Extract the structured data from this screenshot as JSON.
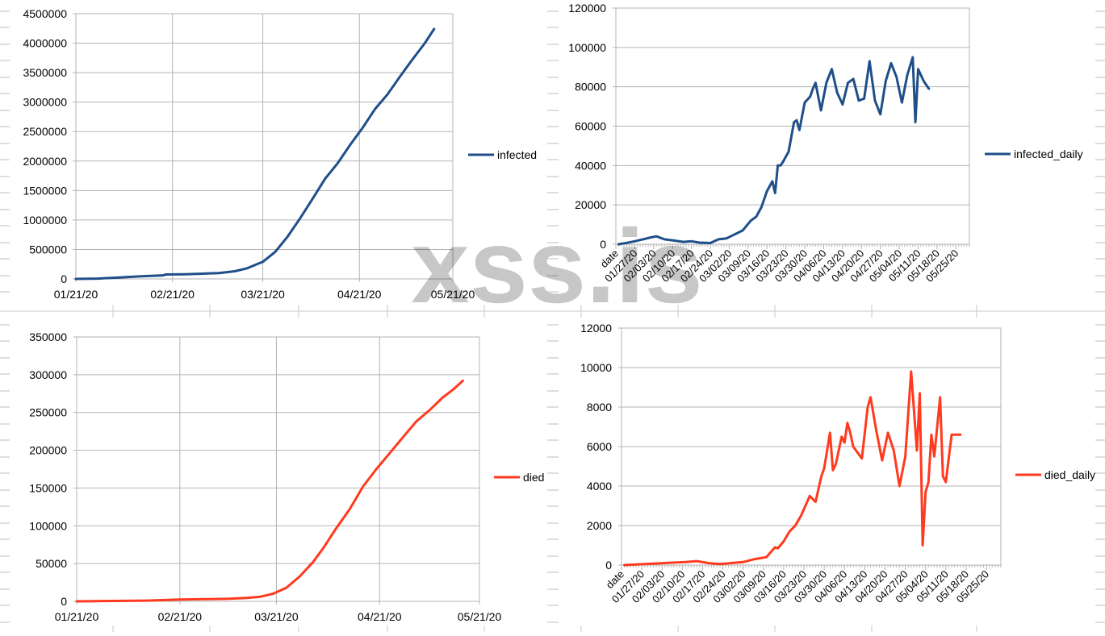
{
  "watermark": "xss.is",
  "chart_data": [
    {
      "type": "line",
      "title": "",
      "series": [
        {
          "name": "infected",
          "color": "#1f4e89",
          "x": [
            "01/21/20",
            "01/28/20",
            "02/04/20",
            "02/11/20",
            "02/18/20",
            "02/19/20",
            "02/25/20",
            "03/01/20",
            "03/07/20",
            "03/12/20",
            "03/16/20",
            "03/21/20",
            "03/25/20",
            "03/29/20",
            "04/02/20",
            "04/06/20",
            "04/10/20",
            "04/14/20",
            "04/18/20",
            "04/22/20",
            "04/26/20",
            "04/30/20",
            "05/04/20",
            "05/08/20",
            "05/12/20",
            "05/15/20"
          ],
          "values": [
            0,
            6000,
            25000,
            45000,
            60000,
            75000,
            80000,
            87000,
            100000,
            130000,
            180000,
            290000,
            460000,
            720000,
            1030000,
            1360000,
            1700000,
            1960000,
            2270000,
            2560000,
            2880000,
            3130000,
            3430000,
            3720000,
            4000000,
            4240000
          ]
        }
      ],
      "x_ticks": [
        "01/21/20",
        "02/21/20",
        "03/21/20",
        "04/21/20",
        "05/21/20"
      ],
      "xlim": [
        "01/21/20",
        "05/21/20"
      ],
      "ylim": [
        0,
        4500000
      ],
      "y_ticks": [
        0,
        500000,
        1000000,
        1500000,
        2000000,
        2500000,
        3000000,
        3500000,
        4000000,
        4500000
      ],
      "legend": "right",
      "grid": true
    },
    {
      "type": "line",
      "title": "",
      "series": [
        {
          "name": "infected_daily",
          "color": "#1f4e89",
          "x": [
            "01/21/20",
            "01/24/20",
            "01/27/20",
            "01/30/20",
            "02/02/20",
            "02/04/20",
            "02/07/20",
            "02/10/20",
            "02/14/20",
            "02/17/20",
            "02/20/20",
            "02/24/20",
            "02/27/20",
            "03/01/20",
            "03/04/20",
            "03/07/20",
            "03/10/20",
            "03/12/20",
            "03/14/20",
            "03/16/20",
            "03/18/20",
            "03/19/20",
            "03/20/20",
            "03/21/20",
            "03/22/20",
            "03/24/20",
            "03/26/20",
            "03/27/20",
            "03/28/20",
            "03/30/20",
            "04/01/20",
            "04/02/20",
            "04/03/20",
            "04/05/20",
            "04/07/20",
            "04/09/20",
            "04/11/20",
            "04/13/20",
            "04/15/20",
            "04/17/20",
            "04/19/20",
            "04/21/20",
            "04/23/20",
            "04/25/20",
            "04/27/20",
            "04/29/20",
            "05/01/20",
            "05/03/20",
            "05/05/20",
            "05/07/20",
            "05/09/20",
            "05/10/20",
            "05/11/20",
            "05/13/20",
            "05/15/20"
          ],
          "values": [
            0,
            700,
            1500,
            2500,
            3500,
            4000,
            2500,
            2000,
            1200,
            1500,
            800,
            600,
            2500,
            3000,
            5000,
            7000,
            12000,
            14000,
            19000,
            27000,
            32000,
            26000,
            40000,
            40000,
            42000,
            47000,
            62000,
            63000,
            58000,
            72000,
            75000,
            79000,
            82000,
            68000,
            82000,
            89000,
            77000,
            71000,
            82000,
            84000,
            73000,
            74000,
            93000,
            73000,
            66000,
            83000,
            92000,
            85000,
            72000,
            86000,
            95000,
            62000,
            89000,
            83000,
            79000
          ]
        }
      ],
      "categories": [
        "date",
        "01/27/20",
        "02/03/20",
        "02/10/20",
        "02/17/20",
        "02/24/20",
        "03/02/20",
        "03/09/20",
        "03/16/20",
        "03/23/20",
        "03/30/20",
        "04/06/20",
        "04/13/20",
        "04/20/20",
        "04/27/20",
        "05/04/20",
        "05/11/20",
        "05/18/20",
        "05/25/20"
      ],
      "ylim": [
        0,
        120000
      ],
      "y_ticks": [
        0,
        20000,
        40000,
        60000,
        80000,
        100000,
        120000
      ],
      "legend": "right",
      "grid": true
    },
    {
      "type": "line",
      "title": "",
      "series": [
        {
          "name": "died",
          "color": "#ff3a1f",
          "x": [
            "01/21/20",
            "02/01/20",
            "02/11/20",
            "02/21/20",
            "03/01/20",
            "03/07/20",
            "03/12/20",
            "03/16/20",
            "03/20/20",
            "03/24/20",
            "03/28/20",
            "04/01/20",
            "04/04/20",
            "04/08/20",
            "04/12/20",
            "04/16/20",
            "04/20/20",
            "04/24/20",
            "04/28/20",
            "05/02/20",
            "05/06/20",
            "05/10/20",
            "05/13/20",
            "05/16/20"
          ],
          "values": [
            0,
            500,
            1000,
            2400,
            3000,
            3500,
            4500,
            6000,
            10000,
            18000,
            33000,
            52000,
            70000,
            97000,
            122000,
            152000,
            175000,
            196000,
            217000,
            238000,
            253000,
            270000,
            280000,
            292000
          ]
        }
      ],
      "x_ticks": [
        "01/21/20",
        "02/21/20",
        "03/21/20",
        "04/21/20",
        "05/21/20"
      ],
      "xlim": [
        "01/21/20",
        "05/21/20"
      ],
      "ylim": [
        0,
        350000
      ],
      "y_ticks": [
        0,
        50000,
        100000,
        150000,
        200000,
        250000,
        300000,
        350000
      ],
      "legend": "right",
      "grid": true
    },
    {
      "type": "line",
      "title": "",
      "series": [
        {
          "name": "died_daily",
          "color": "#ff3a1f",
          "x": [
            "01/21/20",
            "01/28/20",
            "02/04/20",
            "02/11/20",
            "02/15/20",
            "02/19/20",
            "02/23/20",
            "02/27/20",
            "03/02/20",
            "03/06/20",
            "03/10/20",
            "03/13/20",
            "03/14/20",
            "03/16/20",
            "03/18/20",
            "03/20/20",
            "03/22/20",
            "03/25/20",
            "03/27/20",
            "03/29/20",
            "03/30/20",
            "04/01/20",
            "04/02/20",
            "04/03/20",
            "04/05/20",
            "04/06/20",
            "04/07/20",
            "04/08/20",
            "04/09/20",
            "04/12/20",
            "04/14/20",
            "04/15/20",
            "04/17/20",
            "04/19/20",
            "04/21/20",
            "04/23/20",
            "04/25/20",
            "04/27/20",
            "04/29/20",
            "05/01/20",
            "05/02/20",
            "05/03/20",
            "05/04/20",
            "05/05/20",
            "05/06/20",
            "05/07/20",
            "05/08/20",
            "05/09/20",
            "05/10/20",
            "05/11/20",
            "05/13/20",
            "05/14/20",
            "05/15/20",
            "05/16/20"
          ],
          "values": [
            0,
            50,
            100,
            150,
            200,
            100,
            50,
            100,
            150,
            300,
            400,
            900,
            850,
            1200,
            1700,
            2000,
            2500,
            3500,
            3200,
            4500,
            4900,
            6700,
            4800,
            5100,
            6500,
            6200,
            7200,
            6700,
            6000,
            5400,
            8000,
            8500,
            6800,
            5300,
            6700,
            5800,
            4000,
            5500,
            9800,
            5800,
            8700,
            1000,
            3700,
            4200,
            6600,
            5500,
            7000,
            8500,
            4500,
            4200,
            6600,
            6600,
            6600,
            6600
          ]
        }
      ],
      "categories": [
        "date",
        "01/27/20",
        "02/03/20",
        "02/10/20",
        "02/17/20",
        "02/24/20",
        "03/02/20",
        "03/09/20",
        "03/16/20",
        "03/23/20",
        "03/30/20",
        "04/06/20",
        "04/13/20",
        "04/20/20",
        "04/27/20",
        "05/04/20",
        "05/11/20",
        "05/18/20",
        "05/25/20"
      ],
      "ylim": [
        0,
        12000
      ],
      "y_ticks": [
        0,
        2000,
        4000,
        6000,
        8000,
        10000,
        12000
      ],
      "legend": "right",
      "grid": true
    }
  ]
}
